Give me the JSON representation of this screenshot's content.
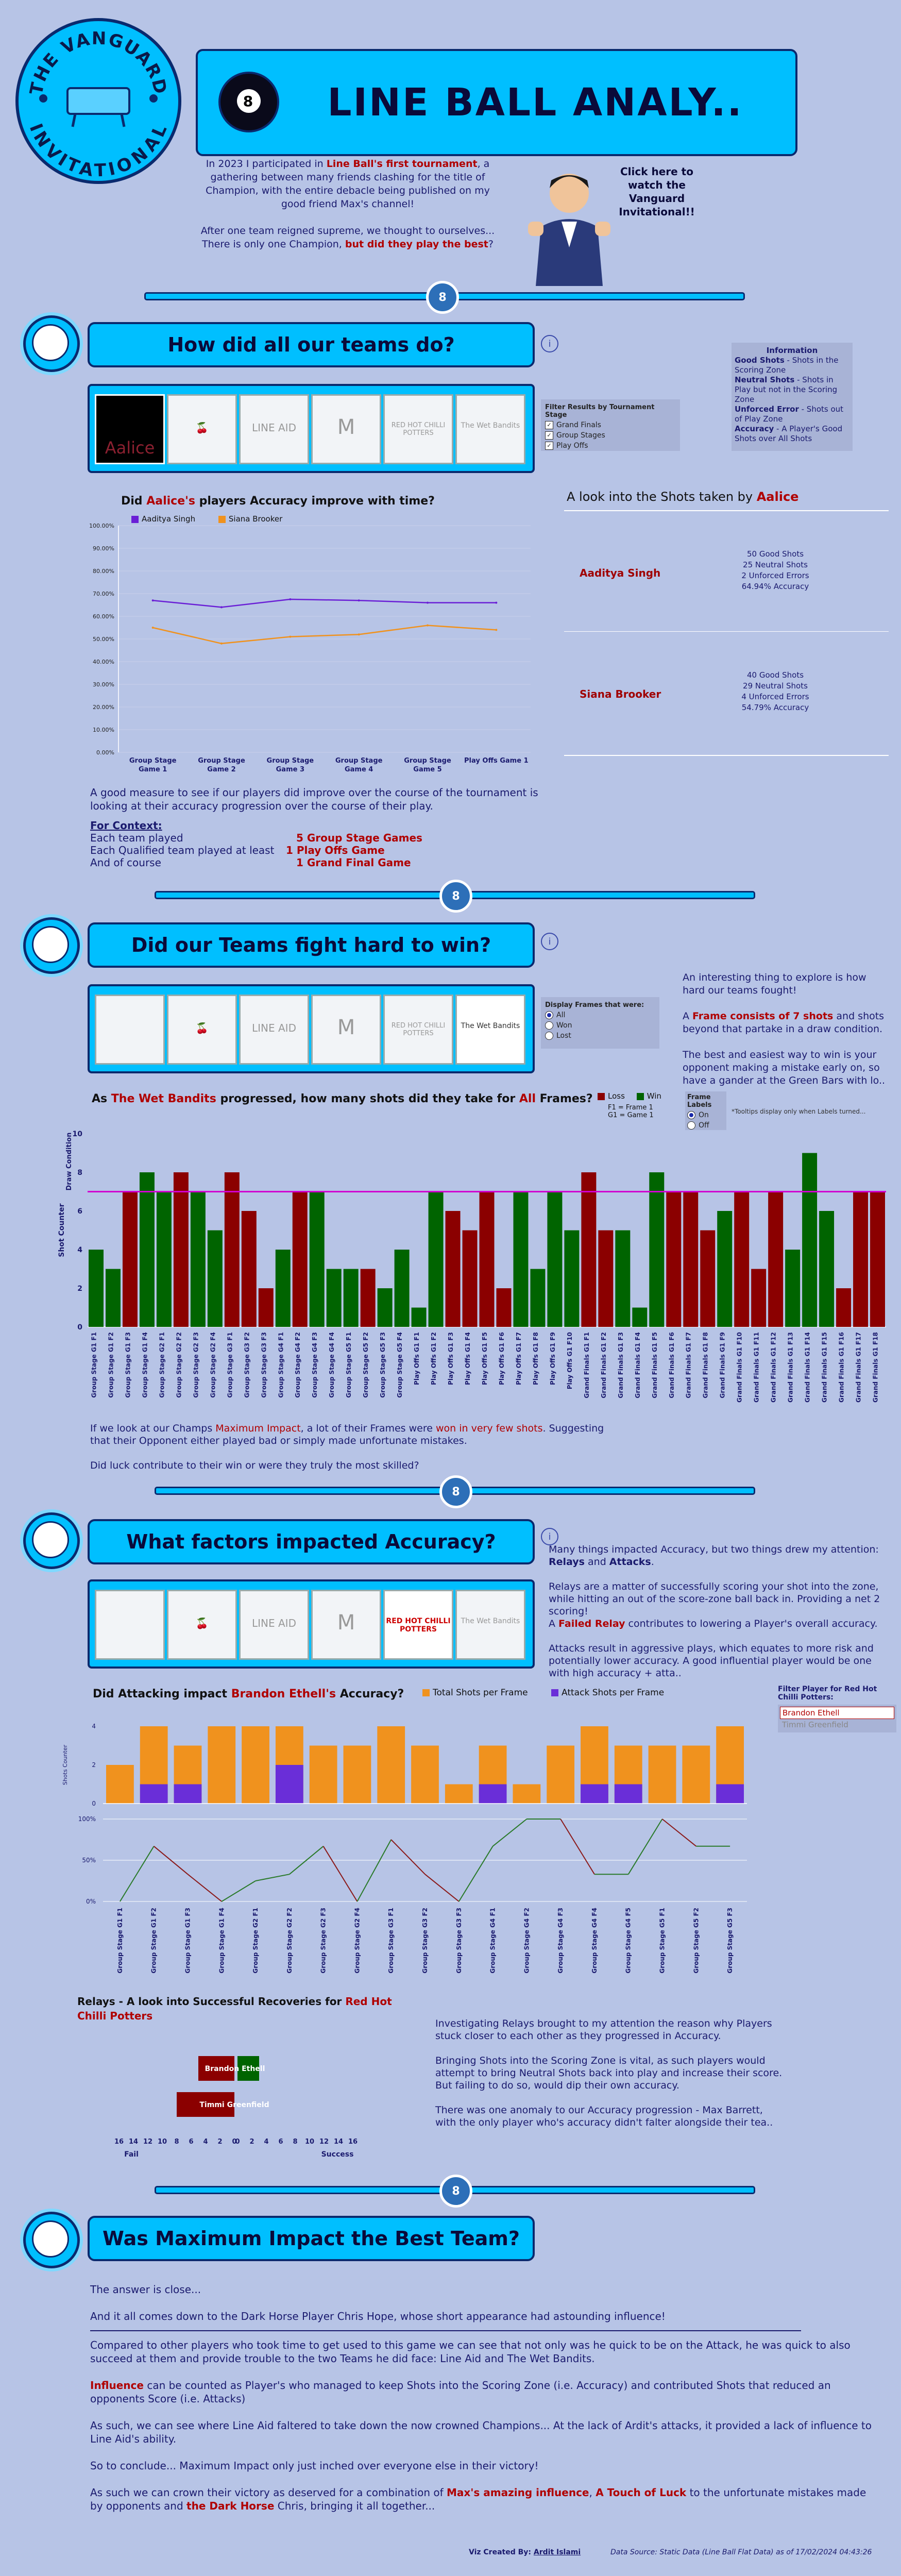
{
  "header": {
    "badge_line1": "THE VANGUARD",
    "badge_line2": "INVITATIONAL",
    "ball_number": "8",
    "title": "LINE BALL ANALY..",
    "intro_p1_a": "In 2023 I participated in ",
    "intro_p1_b": "Line Ball's first tournament",
    "intro_p1_c": ", a gathering between many friends clashing for the title of Champion, with the entire debacle being published on my good friend Max's channel!",
    "intro_p2_a": "After one team reigned supreme, we thought to ourselves... There is only one Champion, ",
    "intro_p2_b": "but did they play the best",
    "intro_p2_c": "?",
    "cta": "Click here to watch the Vanguard Invitational!!"
  },
  "sections": {
    "s1_title": "How did all our teams do?",
    "s2_title": "Did our Teams fight hard to win?",
    "s3_title": "What factors impacted Accuracy?",
    "s4_title": "Was Maximum Impact the Best Team?"
  },
  "logos": {
    "aalice": "Aalice",
    "line_aid": "LINE AID",
    "wet_bandits": "The Wet Bandits",
    "hot_chilli": "RED HOT CHILLI POTTERS"
  },
  "s1": {
    "info_title": "Information",
    "info_good_label": "Good Shots",
    "info_good_text": " - Shots in the Scoring Zone",
    "info_neutral_label": "Neutral Shots",
    "info_neutral_text": " - Shots in Play but not in the Scoring Zone",
    "info_unforced_label": "Unforced Error",
    "info_unforced_text": " - Shots out of Play Zone",
    "info_accuracy_label": "Accuracy",
    "info_accuracy_text": " - A Player's Good Shots over All Shots",
    "filter_title": "Filter Results by Tournament Stage",
    "filter_items": [
      "Grand Finals",
      "Group Stages",
      "Play Offs"
    ],
    "chart_title_a": "Did ",
    "chart_title_b": "Aalice's",
    "chart_title_c": " players Accuracy improve with time?",
    "shots_title_a": "A look into the Shots taken by ",
    "shots_title_b": "Aalice",
    "player1": "Aaditya Singh",
    "player1_stats": [
      "50 Good Shots",
      "25 Neutral Shots",
      "2 Unforced Errors",
      "64.94% Accuracy"
    ],
    "player2": "Siana Brooker",
    "player2_stats": [
      "40 Good Shots",
      "29 Neutral Shots",
      "4 Unforced Errors",
      "54.79% Accuracy"
    ],
    "desc": "A good measure to see if our players did improve over the course of the tournament is looking at their accuracy progression over the course of their play.",
    "context_title": "For Context:",
    "context_rows": [
      {
        "label": "Each team played",
        "value": "5 Group Stage Games"
      },
      {
        "label": "Each Qualified team played at least",
        "value": "1 Play Offs Game"
      },
      {
        "label": "And of course",
        "value": "1 Grand Final Game"
      }
    ]
  },
  "s2": {
    "filter_title": "Display Frames that were:",
    "filter_items": [
      "All",
      "Won",
      "Lost"
    ],
    "text_p1": "An interesting thing to explore is how hard our teams fought!",
    "text_p2_a": "A ",
    "text_p2_b": "Frame consists of 7 shots",
    "text_p2_c": " and shots beyond that partake in a draw condition.",
    "text_p3": "The best and easiest way to win is your opponent making a mistake early on, so have a gander at the Green Bars with lo..",
    "chart_title_a": "As ",
    "chart_title_b": "The Wet Bandits",
    "chart_title_c": " progressed, how many shots did they take for ",
    "chart_title_d": "All",
    "chart_title_e": " Frames?",
    "legend_loss": "Loss",
    "legend_win": "Win",
    "legend_note1": "F1 = Frame 1",
    "legend_note2": "G1 = Game 1",
    "frame_labels_title": "Frame Labels",
    "frame_labels_on": "On",
    "frame_labels_off": "Off",
    "tooltip_note": "*Tooltips display only when Labels turned...",
    "draw_label": "Draw Condition",
    "bottom_p1_a": "If we look at our Champs ",
    "bottom_p1_b": "Maximum Impact",
    "bottom_p1_c": ", a lot of their Frames were ",
    "bottom_p1_d": "won in very few shots",
    "bottom_p1_e": ". Suggesting that their Opponent either played bad or simply made unfortunate mistakes.",
    "bottom_p2": "Did luck contribute to their win or were they truly the most skilled?"
  },
  "s3": {
    "text_p1_a": "Many things impacted Accuracy, but two things drew my attention: ",
    "text_p1_b": "Relays",
    "text_p1_c": " and ",
    "text_p1_d": "Attacks",
    "text_p1_e": ".",
    "text_p2": "Relays are a matter of successfully scoring your shot into the zone, while hitting an out of the score-zone ball back in. Providing a net 2 scoring!",
    "text_p3_a": "A ",
    "text_p3_b": "Failed Relay",
    "text_p3_c": " contributes to lowering a Player's overall accuracy.",
    "text_p4": "Attacks result in aggressive plays, which equates to more risk and potentially lower accuracy. A good influential player would be one with high accuracy + atta..",
    "chart_title_a": "Did Attacking impact ",
    "chart_title_b": "Brandon Ethell's",
    "chart_title_c": " Accuracy?",
    "legend_total": "Total Shots per Frame",
    "legend_attack": "Attack Shots per Frame",
    "filter_title": "Filter Player for Red Hot Chilli Potters:",
    "filter_items": [
      "Brandon Ethell",
      "Timmi Greenfield"
    ],
    "relay_title_a": "Relays - A look into Successful Recoveries for ",
    "relay_title_b": "Red Hot Chilli Potters",
    "relay_axis_fail": "Fail",
    "relay_axis_success": "Success",
    "relay_p1": "Investigating Relays brought to my attention the reason why Players stuck closer to each other as they progressed in Accuracy.",
    "relay_p2": "Bringing Shots into the Scoring Zone is vital, as such players would attempt to bring Neutral Shots back into play and increase their score.",
    "relay_p3": "But failing to do so, would dip their own accuracy.",
    "relay_p4": "There was one anomaly to our Accuracy progression - Max Barrett, with the only player who's accuracy didn't falter alongside their tea.."
  },
  "s4": {
    "p1": "The answer is close...",
    "p2": "And it all comes down to the Dark Horse Player Chris Hope, whose short appearance had astounding influence!",
    "p3": "Compared to other players who took time to get used to this game we can see that not only was he quick to be on the Attack, he was quick to also succeed at them and provide trouble to the two Teams he did face: Line Aid and The Wet Bandits.",
    "p4_a": "Influence",
    "p4_b": " can be counted as Player's who managed to keep Shots into the Scoring Zone (i.e. Accuracy) and contributed Shots that reduced an opponents Score (i.e. Attacks)",
    "p5": "As such, we can see where Line Aid faltered to take down the now crowned Champions... At the lack of Ardit's attacks, it provided a lack of influence to Line Aid's ability.",
    "p6": "So to conclude... Maximum Impact only just inched over everyone else in their victory!",
    "p7_a": "As such we can crown their victory as deserved for a combination of ",
    "p7_b": "Max's amazing influence",
    "p7_c": ", ",
    "p7_d": "A Touch of Luck",
    "p7_e": " to the unfortunate mistakes made by opponents and ",
    "p7_f": "the Dark Horse",
    "p7_g": " Chris, bringing it all together..."
  },
  "footer": {
    "created_label": "Viz Created By: ",
    "created_name": "Ardit Islami",
    "source": "Data Source: Static Data (Line Ball Flat Data) as of 17/02/2024 04:43:26"
  },
  "colors": {
    "accent": "#00bfff",
    "navy": "#0a2a6e",
    "loss": "#8b0000",
    "win": "#006400",
    "orange": "#f0921e",
    "purple": "#6a2ed8"
  },
  "chart_data": [
    {
      "type": "line",
      "title": "Did Aalice's players Accuracy improve with time?",
      "categories": [
        "Group Stage Game 1",
        "Group Stage Game 2",
        "Group Stage Game 3",
        "Group Stage Game 4",
        "Group Stage Game 5",
        "Play Offs Game 1"
      ],
      "series": [
        {
          "name": "Aaditya Singh",
          "values": [
            67,
            64,
            67.5,
            67,
            66,
            66
          ],
          "color": "#6a1fd6"
        },
        {
          "name": "Siana Brooker",
          "values": [
            55,
            48,
            51,
            52,
            56,
            54
          ],
          "color": "#f0921e"
        }
      ],
      "yticks": [
        "0.00%",
        "10.00%",
        "20.00%",
        "30.00%",
        "40.00%",
        "50.00%",
        "60.00%",
        "70.00%",
        "80.00%",
        "90.00%",
        "100.00%"
      ],
      "ylim": [
        0,
        100
      ]
    },
    {
      "type": "bar",
      "title": "As The Wet Bandits progressed, how many shots did they take for All Frames?",
      "ylabel": "Shot Counter",
      "ylim": [
        0,
        10
      ],
      "yticks": [
        0,
        2,
        4,
        6,
        8,
        10
      ],
      "draw_condition": 7,
      "categories": [
        "Group Stage G1 F1",
        "Group Stage G1 F2",
        "Group Stage G1 F3",
        "Group Stage G1 F4",
        "Group Stage G2 F1",
        "Group Stage G2 F2",
        "Group Stage G2 F3",
        "Group Stage G2 F4",
        "Group Stage G3 F1",
        "Group Stage G3 F2",
        "Group Stage G3 F3",
        "Group Stage G4 F1",
        "Group Stage G4 F2",
        "Group Stage G4 F3",
        "Group Stage G4 F4",
        "Group Stage G5 F1",
        "Group Stage G5 F2",
        "Group Stage G5 F3",
        "Group Stage G5 F4",
        "Play Offs G1 F1",
        "Play Offs G1 F2",
        "Play Offs G1 F3",
        "Play Offs G1 F4",
        "Play Offs G1 F5",
        "Play Offs G1 F6",
        "Play Offs G1 F7",
        "Play Offs G1 F8",
        "Play Offs G1 F9",
        "Play Offs G1 F10",
        "Grand Finals G1 F1",
        "Grand Finals G1 F2",
        "Grand Finals G1 F3",
        "Grand Finals G1 F4",
        "Grand Finals G1 F5",
        "Grand Finals G1 F6",
        "Grand Finals G1 F7",
        "Grand Finals G1 F8",
        "Grand Finals G1 F9",
        "Grand Finals G1 F10",
        "Grand Finals G1 F11",
        "Grand Finals G1 F12",
        "Grand Finals G1 F13",
        "Grand Finals G1 F14",
        "Grand Finals G1 F15",
        "Grand Finals G1 F16",
        "Grand Finals G1 F17",
        "Grand Finals G1 F18"
      ],
      "values": [
        4,
        3,
        7,
        8,
        7,
        8,
        7,
        5,
        8,
        6,
        2,
        4,
        7,
        7,
        3,
        3,
        3,
        2,
        4,
        1,
        7,
        6,
        5,
        7,
        2,
        7,
        3,
        7,
        5,
        8,
        5,
        5,
        1,
        8,
        7,
        7,
        5,
        6,
        7,
        3,
        7,
        4,
        9,
        6,
        2,
        7,
        7
      ],
      "results": [
        "W",
        "W",
        "L",
        "W",
        "W",
        "L",
        "W",
        "W",
        "L",
        "L",
        "L",
        "W",
        "L",
        "W",
        "W",
        "W",
        "L",
        "W",
        "W",
        "W",
        "W",
        "L",
        "L",
        "L",
        "L",
        "W",
        "W",
        "W",
        "W",
        "L",
        "L",
        "W",
        "W",
        "W",
        "L",
        "L",
        "L",
        "W",
        "L",
        "L",
        "L",
        "W",
        "W",
        "W",
        "L",
        "L",
        "L"
      ]
    },
    {
      "type": "bar",
      "title": "Did Attacking impact Brandon Ethell's Accuracy?",
      "ylabel": "Shots Counter",
      "ylim": [
        0,
        4
      ],
      "yticks": [
        0,
        2,
        4
      ],
      "categories": [
        "Group Stage G1 F1",
        "Group Stage G1 F2",
        "Group Stage G1 F3",
        "Group Stage G1 F4",
        "Group Stage G2 F1",
        "Group Stage G2 F2",
        "Group Stage G2 F3",
        "Group Stage G2 F4",
        "Group Stage G3 F1",
        "Group Stage G3 F2",
        "Group Stage G3 F3",
        "Group Stage G4 F1",
        "Group Stage G4 F2",
        "Group Stage G4 F3",
        "Group Stage G4 F4",
        "Group Stage G4 F5",
        "Group Stage G5 F1",
        "Group Stage G5 F2",
        "Group Stage G5 F3"
      ],
      "series": [
        {
          "name": "Total Shots per Frame",
          "values": [
            2,
            4,
            3,
            4,
            4,
            4,
            3,
            3,
            4,
            3,
            1,
            3,
            1,
            3,
            4,
            3,
            3,
            3,
            4
          ],
          "color": "#f0921e"
        },
        {
          "name": "Attack Shots per Frame",
          "values": [
            0,
            1,
            1,
            0,
            0,
            2,
            0,
            0,
            0,
            0,
            0,
            1,
            0,
            0,
            1,
            1,
            0,
            0,
            1
          ],
          "color": "#6a2ed8"
        }
      ],
      "accuracy_ticks": [
        "0%",
        "50%",
        "100%"
      ],
      "accuracy": [
        0,
        67,
        33,
        0,
        25,
        33,
        67,
        0,
        75,
        33,
        0,
        67,
        100,
        100,
        33,
        33,
        100,
        67,
        67
      ]
    },
    {
      "type": "bar",
      "title": "Relays - A look into Successful Recoveries for Red Hot Chilli Potters",
      "categories": [
        "Brandon Ethell",
        "Timmi Greenfield"
      ],
      "series": [
        {
          "name": "Fail",
          "values": [
            5,
            8
          ],
          "color": "#8b0000"
        },
        {
          "name": "Success",
          "values": [
            3,
            0
          ],
          "color": "#006400"
        }
      ],
      "xticks": [
        "16",
        "14",
        "12",
        "10",
        "8",
        "6",
        "4",
        "2",
        "0",
        "0",
        "2",
        "4",
        "6",
        "8",
        "10",
        "12",
        "14",
        "16"
      ]
    }
  ]
}
